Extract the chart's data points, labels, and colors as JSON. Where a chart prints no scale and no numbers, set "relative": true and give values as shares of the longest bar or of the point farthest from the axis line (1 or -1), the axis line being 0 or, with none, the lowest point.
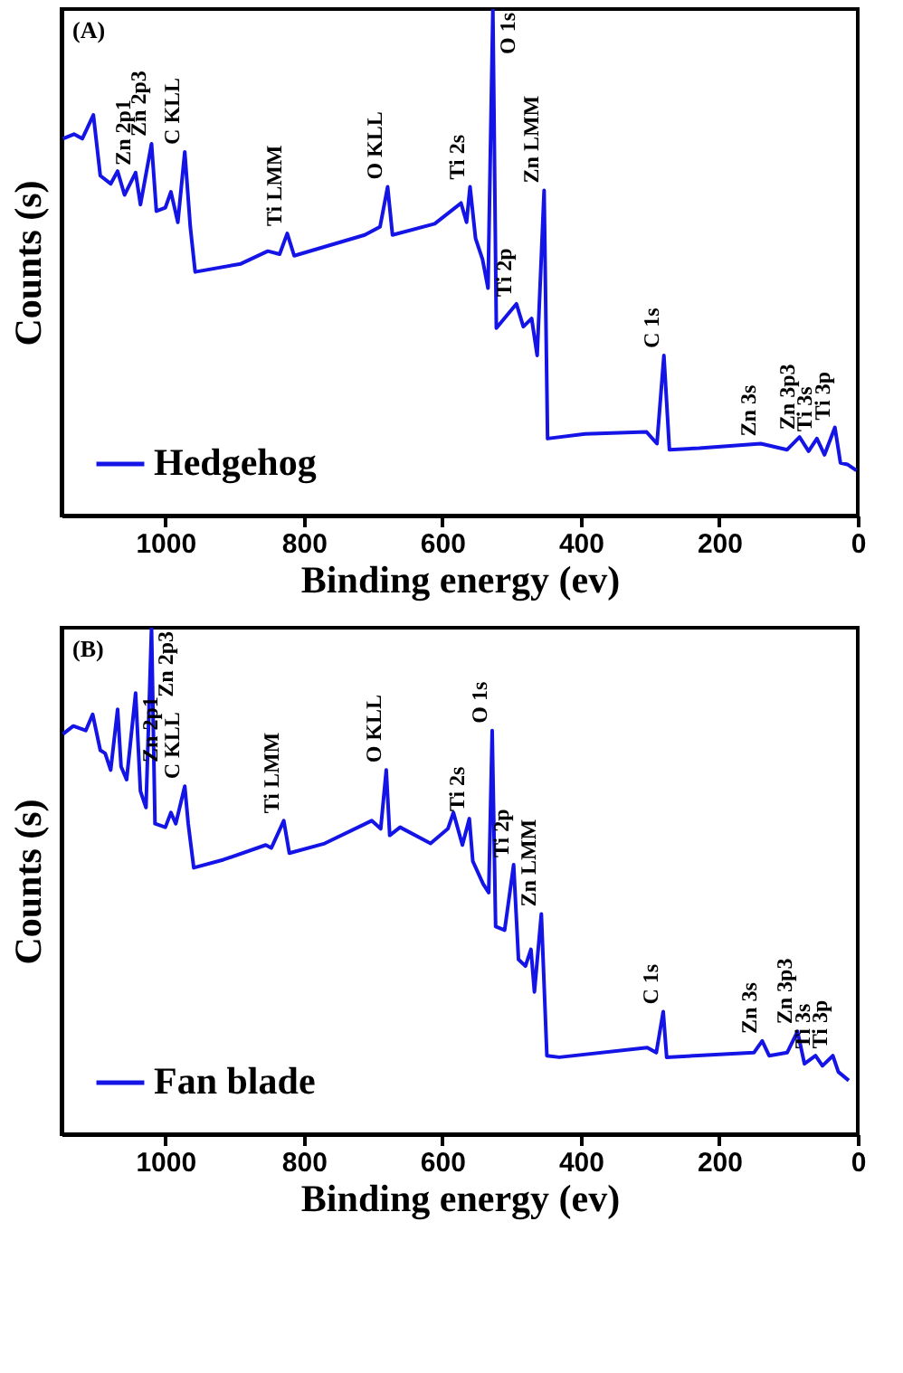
{
  "chart_data": [
    {
      "type": "line",
      "relative": true,
      "xlabel": "Binding energy (ev)",
      "ylabel": "Counts (s)",
      "xlim": [
        1150,
        0
      ],
      "xticks": [
        1000,
        800,
        600,
        400,
        200,
        0
      ],
      "legend": "bottom left",
      "x": [
        1148,
        1132,
        1120,
        1104,
        1094,
        1079,
        1069,
        1059,
        1043,
        1036,
        1020,
        1013,
        1000,
        992,
        982,
        972,
        964,
        957,
        891,
        852,
        835,
        824,
        814,
        712,
        690,
        679,
        672,
        611,
        573,
        565,
        560,
        552,
        542,
        534,
        527,
        522,
        493,
        483,
        471,
        463,
        453,
        448,
        394,
        305,
        290,
        280,
        272,
        229,
        140,
        102,
        84,
        71,
        59,
        48,
        33,
        25,
        15,
        2
      ],
      "series": [
        {
          "name": "Hedgehog",
          "color": "#1414e6",
          "values": [
            0.744,
            0.753,
            0.744,
            0.791,
            0.671,
            0.655,
            0.68,
            0.633,
            0.677,
            0.614,
            0.734,
            0.601,
            0.608,
            0.639,
            0.579,
            0.718,
            0.57,
            0.481,
            0.497,
            0.522,
            0.516,
            0.557,
            0.513,
            0.554,
            0.57,
            0.649,
            0.554,
            0.576,
            0.617,
            0.579,
            0.649,
            0.547,
            0.506,
            0.449,
            1,
            0.37,
            0.418,
            0.373,
            0.389,
            0.316,
            0.642,
            0.152,
            0.161,
            0.165,
            0.142,
            0.316,
            0.13,
            0.133,
            0.142,
            0.13,
            0.155,
            0.127,
            0.152,
            0.12,
            0.174,
            0.104,
            0.101,
            0.089
          ]
        }
      ],
      "annotations": [
        "(A)",
        {
          "text": "Zn 2p1",
          "x": 1043,
          "y": 0.677
        },
        {
          "text": "Zn 2p3",
          "x": 1020,
          "y": 0.734
        },
        {
          "text": "C KLL",
          "x": 972,
          "y": 0.718
        },
        {
          "text": "Ti LMM",
          "x": 824,
          "y": 0.557
        },
        {
          "text": "O KLL",
          "x": 679,
          "y": 0.649
        },
        {
          "text": "Ti 2s",
          "x": 560,
          "y": 0.649
        },
        {
          "text": "O 1s",
          "x": 527,
          "y": 1
        },
        {
          "text": "Ti 2p",
          "x": 493,
          "y": 0.418
        },
        {
          "text": "Zn LMM",
          "x": 453,
          "y": 0.642
        },
        {
          "text": "C 1s",
          "x": 280,
          "y": 0.316
        },
        {
          "text": "Zn 3s",
          "x": 140,
          "y": 0.142
        },
        {
          "text": "Zn 3p3",
          "x": 84,
          "y": 0.155
        },
        {
          "text": "Ti 3s",
          "x": 59,
          "y": 0.152
        },
        {
          "text": "Ti 3p",
          "x": 33,
          "y": 0.174
        }
      ]
    },
    {
      "type": "line",
      "relative": true,
      "xlabel": "Binding energy (ev)",
      "ylabel": "Counts (s)",
      "xlim": [
        1150,
        0
      ],
      "xticks": [
        1000,
        800,
        600,
        400,
        200,
        0
      ],
      "legend": "bottom left",
      "x": [
        1148,
        1133,
        1115,
        1105,
        1094,
        1087,
        1079,
        1069,
        1064,
        1056,
        1043,
        1036,
        1028,
        1020,
        1015,
        1000,
        992,
        985,
        972,
        967,
        959,
        916,
        855,
        847,
        829,
        821,
        770,
        702,
        689,
        681,
        676,
        661,
        617,
        592,
        584,
        571,
        561,
        556,
        541,
        533,
        528,
        523,
        510,
        497,
        490,
        480,
        472,
        467,
        457,
        449,
        431,
        304,
        291,
        281,
        276,
        150,
        138,
        128,
        102,
        87,
        77,
        61,
        51,
        36,
        28,
        13
      ],
      "series": [
        {
          "name": "Fan blade",
          "color": "#1414e6",
          "values": [
            0.79,
            0.806,
            0.797,
            0.829,
            0.758,
            0.752,
            0.719,
            0.839,
            0.726,
            0.7,
            0.871,
            0.677,
            0.645,
            1,
            0.613,
            0.606,
            0.635,
            0.613,
            0.687,
            0.613,
            0.526,
            0.542,
            0.571,
            0.565,
            0.619,
            0.555,
            0.574,
            0.619,
            0.603,
            0.719,
            0.59,
            0.606,
            0.574,
            0.603,
            0.635,
            0.571,
            0.623,
            0.539,
            0.494,
            0.477,
            0.797,
            0.41,
            0.403,
            0.532,
            0.345,
            0.332,
            0.365,
            0.281,
            0.435,
            0.155,
            0.152,
            0.171,
            0.161,
            0.242,
            0.152,
            0.161,
            0.184,
            0.155,
            0.161,
            0.203,
            0.139,
            0.155,
            0.135,
            0.155,
            0.123,
            0.106
          ]
        }
      ],
      "annotations": [
        "(B)",
        {
          "text": "Zn 2p1",
          "x": 1043,
          "y": 0.871
        },
        {
          "text": "Zn 2p3",
          "x": 1020,
          "y": 1
        },
        {
          "text": "C KLL",
          "x": 972,
          "y": 0.687
        },
        {
          "text": "Ti LMM",
          "x": 829,
          "y": 0.619
        },
        {
          "text": "O KLL",
          "x": 681,
          "y": 0.719
        },
        {
          "text": "Ti 2s",
          "x": 561,
          "y": 0.623
        },
        {
          "text": "O 1s",
          "x": 528,
          "y": 0.797
        },
        {
          "text": "Ti 2p",
          "x": 497,
          "y": 0.532
        },
        {
          "text": "Zn LMM",
          "x": 457,
          "y": 0.435
        },
        {
          "text": "C 1s",
          "x": 281,
          "y": 0.242
        },
        {
          "text": "Zn 3s",
          "x": 138,
          "y": 0.184
        },
        {
          "text": "Zn 3p3",
          "x": 87,
          "y": 0.203
        },
        {
          "text": "Ti 3s",
          "x": 61,
          "y": 0.155
        },
        {
          "text": "Ti 3p",
          "x": 36,
          "y": 0.155
        }
      ]
    }
  ]
}
